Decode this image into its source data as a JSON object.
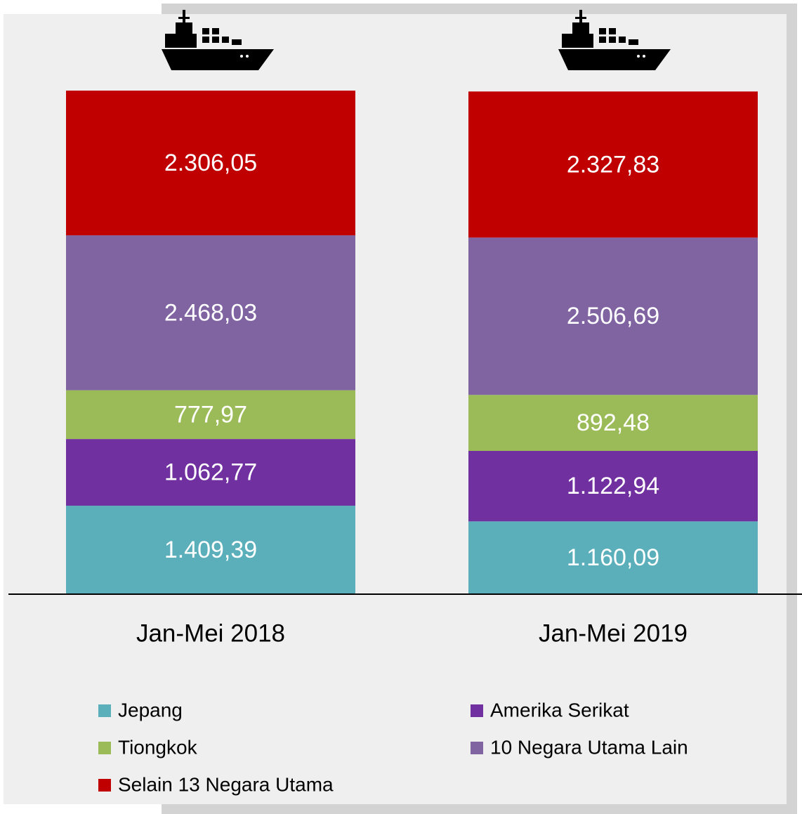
{
  "chart_data": {
    "type": "stacked-bar",
    "categories": [
      "Jan-Mei 2018",
      "Jan-Mei 2019"
    ],
    "series": [
      {
        "name": "Jepang",
        "color": "#5aafba",
        "values": [
          1409.39,
          1160.09
        ],
        "value_labels": [
          "1.409,39",
          "1.160,09"
        ]
      },
      {
        "name": "Amerika Serikat",
        "color": "#7030a0",
        "values": [
          1062.77,
          1122.94
        ],
        "value_labels": [
          "1.062,77",
          "1.122,94"
        ]
      },
      {
        "name": "Tiongkok",
        "color": "#9bbb59",
        "values": [
          777.97,
          892.48
        ],
        "value_labels": [
          "777,97",
          "892,48"
        ]
      },
      {
        "name": "10 Negara Utama Lain",
        "color": "#8064a2",
        "values": [
          2468.03,
          2506.69
        ],
        "value_labels": [
          "2.468,03",
          "2.506,69"
        ]
      },
      {
        "name": "Selain 13 Negara Utama",
        "color": "#c00000",
        "values": [
          2306.05,
          2327.83
        ],
        "value_labels": [
          "2.306,05",
          "2.327,83"
        ]
      }
    ]
  }
}
